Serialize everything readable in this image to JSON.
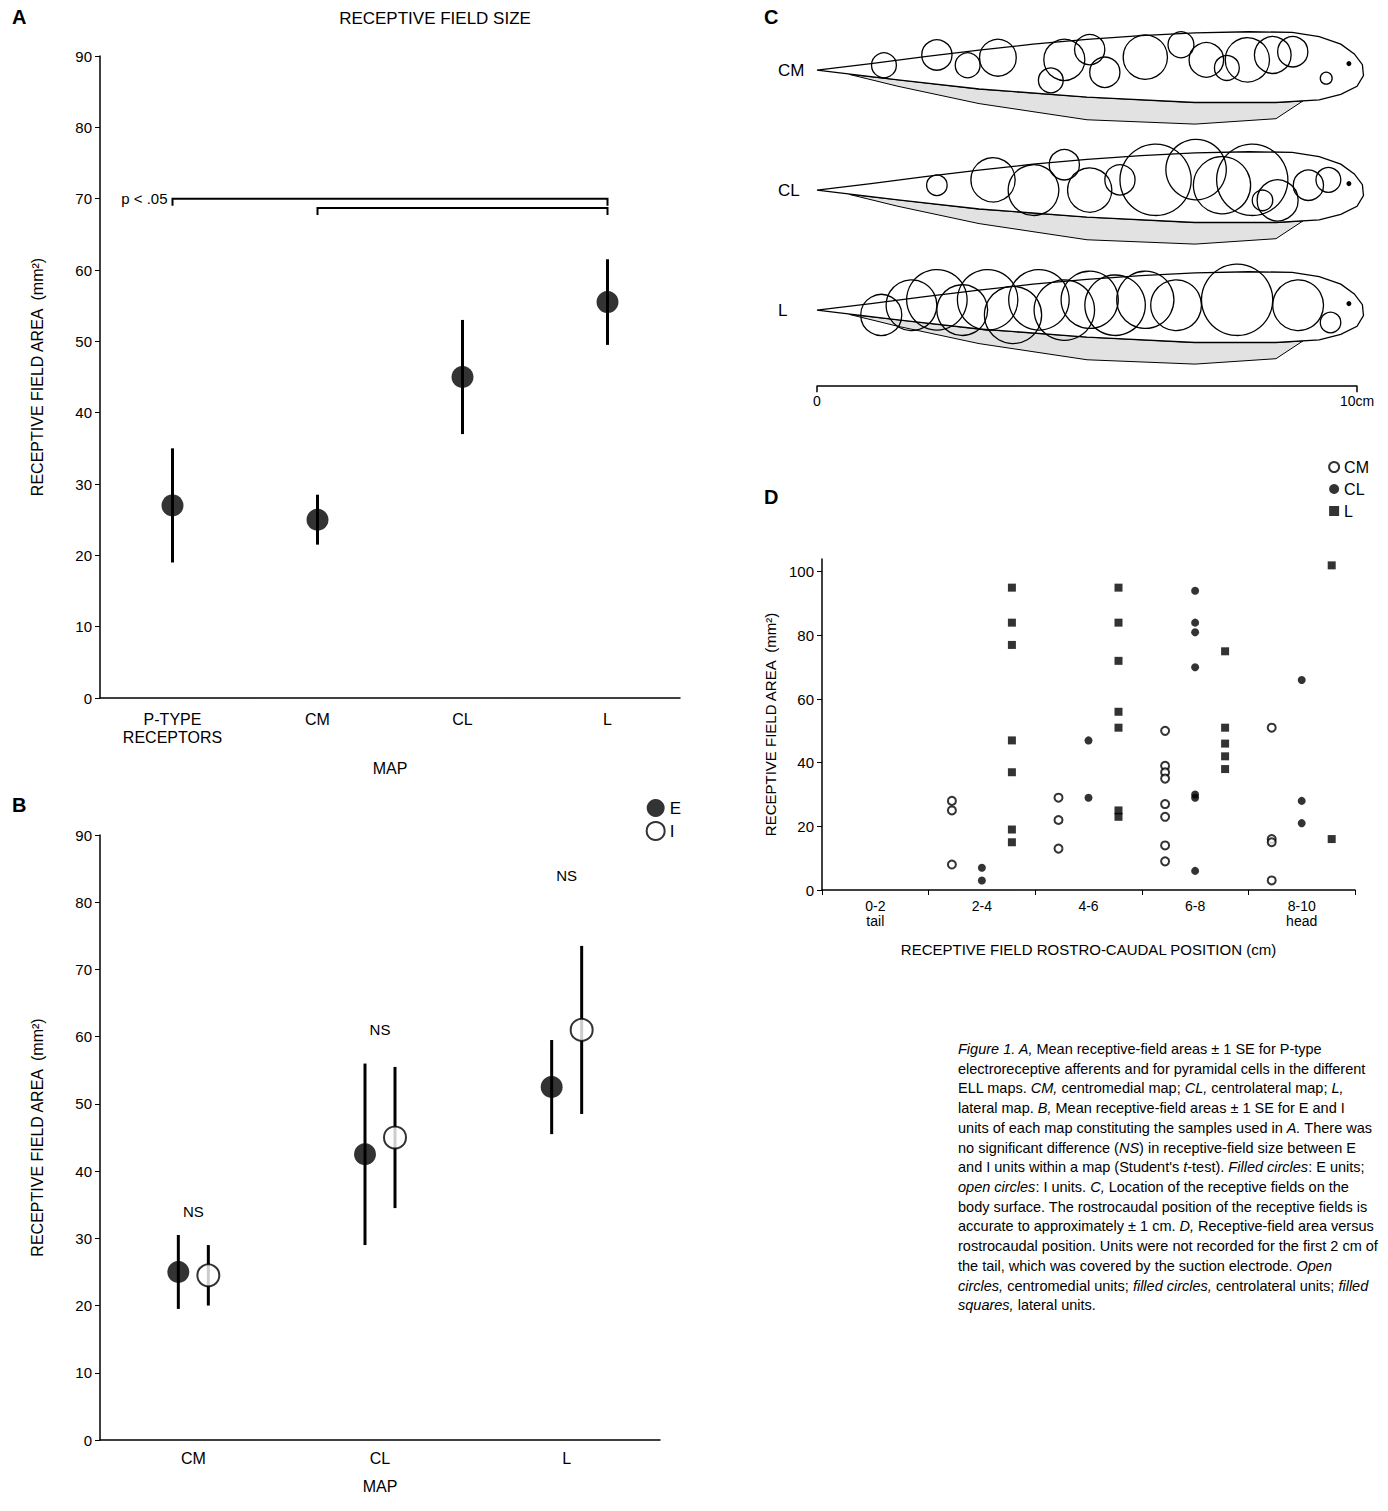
{
  "chart_data": [
    {
      "panel": "A",
      "type": "scatter",
      "title": "RECEPTIVE FIELD SIZE",
      "x_label": "MAP",
      "y_label": "RECEPTIVE FIELD AREA  (mm²)",
      "categories": [
        "P-TYPE RECEPTORS",
        "CM",
        "CL",
        "L"
      ],
      "values": [
        27,
        25,
        45,
        55.5
      ],
      "errors": [
        8,
        3.5,
        8,
        6
      ],
      "color": "#000000",
      "marker": "filled circle",
      "ylim": [
        0,
        90
      ],
      "yticks": [
        0,
        10,
        20,
        30,
        40,
        50,
        60,
        70,
        80,
        90
      ],
      "grid": false,
      "brackets": [
        {
          "label": "p < .05",
          "from": "P-TYPE RECEPTORS",
          "to": "L",
          "y": 70
        },
        {
          "from": "CM",
          "to": "L",
          "y": 68.7
        }
      ]
    },
    {
      "panel": "B",
      "type": "scatter",
      "x_label": "MAP",
      "y_label": "RECEPTIVE FIELD AREA  (mm²)",
      "categories": [
        "CM",
        "CL",
        "L"
      ],
      "series": [
        {
          "name": "E",
          "marker": "filled circle",
          "color": "#000000",
          "values": [
            25,
            42.5,
            52.5
          ],
          "errors": [
            5.5,
            13.5,
            7
          ]
        },
        {
          "name": "I",
          "marker": "open circle",
          "color": "#000000",
          "values": [
            24.5,
            45,
            61
          ],
          "errors": [
            4.5,
            10.5,
            12.5
          ]
        }
      ],
      "annotations": [
        {
          "text": "NS",
          "x": "CM",
          "y": 34
        },
        {
          "text": "NS",
          "x": "CL",
          "y": 61
        },
        {
          "text": "NS",
          "x": "L",
          "y": 84
        }
      ],
      "legend": "top-right",
      "ylim": [
        0,
        90
      ],
      "yticks": [
        0,
        10,
        20,
        30,
        40,
        50,
        60,
        70,
        80,
        90
      ],
      "grid": false
    },
    {
      "panel": "C",
      "type": "receptive_field_map",
      "xlim": [
        0,
        10
      ],
      "xticks": [
        0,
        {
          "value": 10,
          "label": "10cm"
        }
      ],
      "ylim": [
        -1.15,
        1.15
      ],
      "tick_labels": "x",
      "rows": [
        {
          "name": "CM",
          "circles": [
            [
              1.24,
              0.09,
              0.23
            ],
            [
              2.22,
              0.28,
              0.28
            ],
            [
              2.79,
              0.09,
              0.23
            ],
            [
              3.35,
              0.23,
              0.34
            ],
            [
              4.33,
              -0.19,
              0.23
            ],
            [
              4.58,
              0.19,
              0.38
            ],
            [
              5.05,
              0.38,
              0.28
            ],
            [
              5.33,
              -0.04,
              0.28
            ],
            [
              6.08,
              0.24,
              0.41
            ],
            [
              6.74,
              0.47,
              0.24
            ],
            [
              7.21,
              0.19,
              0.32
            ],
            [
              7.59,
              0.04,
              0.23
            ],
            [
              7.97,
              0.19,
              0.41
            ],
            [
              8.44,
              0.28,
              0.34
            ],
            [
              8.81,
              0.34,
              0.28
            ],
            [
              9.43,
              -0.15,
              0.11
            ]
          ]
        },
        {
          "name": "CL",
          "circles": [
            [
              2.22,
              0.09,
              0.19
            ],
            [
              3.26,
              0.19,
              0.41
            ],
            [
              4.01,
              0,
              0.47
            ],
            [
              4.58,
              0.47,
              0.28
            ],
            [
              5.05,
              0,
              0.41
            ],
            [
              5.61,
              0.19,
              0.28
            ],
            [
              6.27,
              0.19,
              0.66
            ],
            [
              7.02,
              0.38,
              0.56
            ],
            [
              7.5,
              0.09,
              0.53
            ],
            [
              8.06,
              0.19,
              0.66
            ],
            [
              8.53,
              -0.19,
              0.38
            ],
            [
              9.1,
              0.09,
              0.28
            ],
            [
              9.47,
              0.19,
              0.23
            ],
            [
              8.25,
              -0.19,
              0.19
            ]
          ]
        },
        {
          "name": "L",
          "circles": [
            [
              1.19,
              -0.09,
              0.38
            ],
            [
              1.75,
              0.09,
              0.47
            ],
            [
              2.22,
              0.19,
              0.56
            ],
            [
              2.69,
              0,
              0.47
            ],
            [
              3.16,
              0.19,
              0.56
            ],
            [
              3.63,
              -0.09,
              0.53
            ],
            [
              4.11,
              0.19,
              0.56
            ],
            [
              4.58,
              0,
              0.56
            ],
            [
              5.05,
              0.19,
              0.53
            ],
            [
              5.52,
              0.09,
              0.56
            ],
            [
              6.08,
              0.19,
              0.53
            ],
            [
              6.65,
              0.09,
              0.47
            ],
            [
              7.78,
              0.19,
              0.66
            ],
            [
              8.91,
              0.09,
              0.47
            ],
            [
              9.51,
              -0.23,
              0.19
            ]
          ]
        }
      ]
    },
    {
      "panel": "D",
      "type": "scatter",
      "x_label": "RECEPTIVE FIELD ROSTRO-CAUDAL POSITION (cm)",
      "y_label": "RECEPTIVE FIELD AREA  (mm²)",
      "categories": [
        "0-2\ntail",
        "2-4",
        "4-6",
        "6-8",
        "8-10\nhead"
      ],
      "series": [
        {
          "name": "CM",
          "marker": "open circle",
          "color": "#000000",
          "x": [
            "2-4",
            "2-4",
            "2-4",
            "4-6",
            "4-6",
            "4-6",
            "6-8",
            "6-8",
            "6-8",
            "6-8",
            "6-8",
            "6-8",
            "6-8",
            "6-8",
            "8-10\nhead",
            "8-10\nhead",
            "8-10\nhead",
            "8-10\nhead"
          ],
          "values": [
            28,
            25,
            8,
            29,
            22,
            13,
            50,
            39,
            37,
            35,
            27,
            23,
            14,
            9,
            51,
            16,
            15,
            3
          ]
        },
        {
          "name": "CL",
          "marker": "filled circle",
          "color": "#000000",
          "x": [
            "2-4",
            "2-4",
            "4-6",
            "4-6",
            "6-8",
            "6-8",
            "6-8",
            "6-8",
            "6-8",
            "6-8",
            "6-8",
            "8-10\nhead",
            "8-10\nhead",
            "8-10\nhead"
          ],
          "values": [
            7,
            3,
            47,
            29,
            94,
            84,
            81,
            70,
            30,
            29,
            6,
            66,
            28,
            21
          ]
        },
        {
          "name": "L",
          "marker": "filled square",
          "color": "#000000",
          "x": [
            "2-4",
            "2-4",
            "2-4",
            "2-4",
            "2-4",
            "2-4",
            "2-4",
            "4-6",
            "4-6",
            "4-6",
            "4-6",
            "4-6",
            "4-6",
            "4-6",
            "6-8",
            "6-8",
            "6-8",
            "6-8",
            "6-8",
            "8-10\nhead",
            "8-10\nhead"
          ],
          "values": [
            95,
            84,
            77,
            47,
            37,
            19,
            15,
            95,
            84,
            72,
            56,
            51,
            25,
            23,
            75,
            51,
            46,
            42,
            38,
            102,
            16
          ]
        }
      ],
      "legend": "top-right",
      "ylim": [
        0,
        104
      ],
      "yticks": [
        0,
        20,
        40,
        60,
        80,
        100
      ],
      "grid": false
    }
  ],
  "caption": [
    {
      "italic": "Figure 1.  A,"
    },
    " Mean receptive-field areas ± 1 SE for P-type electroreceptive afferents and for pyramidal cells in the different ELL maps. ",
    {
      "italic": "CM,"
    },
    " centromedial map; ",
    {
      "italic": "CL,"
    },
    " centrolateral map; ",
    {
      "italic": "L,"
    },
    " lateral map. ",
    {
      "italic": "B,"
    },
    " Mean receptive-field areas ± 1 SE for E and I units of each map constituting the samples used in ",
    {
      "italic": "A."
    },
    " There was no significant difference (",
    {
      "italic": "NS"
    },
    ") in receptive-field size between E and I units within a map (Student's ",
    {
      "italic": "t"
    },
    "-test). ",
    {
      "italic": "Filled circles"
    },
    ": E units; ",
    {
      "italic": "open circles"
    },
    ": I units. ",
    {
      "italic": "C,"
    },
    " Location of the receptive fields on the body surface. The rostrocaudal position of the receptive fields is accurate to approximately ± 1 cm. ",
    {
      "italic": "D,"
    },
    " Receptive-field area versus rostrocaudal position. Units were not recorded for the first 2 cm of the tail, which was covered by the suction electrode. ",
    {
      "italic": "Open circles,"
    },
    " centromedial units; ",
    {
      "italic": "filled circles,"
    },
    " centrolateral units; ",
    {
      "italic": "filled squares,"
    },
    " lateral units."
  ]
}
